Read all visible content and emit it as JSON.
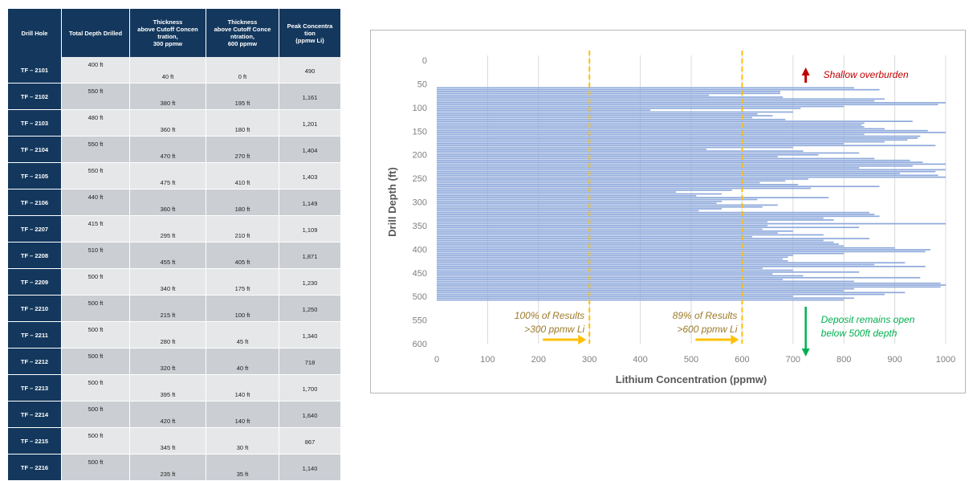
{
  "table": {
    "headers": {
      "hole": "Drill Hole",
      "depth": "Total Depth Drilled",
      "t300_lines": [
        "Thickness",
        "above Cutoff Concen",
        "tration,",
        "300 ppmw"
      ],
      "t600_lines": [
        "Thickness",
        "above Cutoff Conce",
        "ntration,",
        "600 ppmw"
      ],
      "peak_lines": [
        "Peak Concentra",
        "tion",
        "(ppmw Li)"
      ]
    },
    "rows": [
      {
        "hole": "TF – 2101",
        "depth": "400 ft",
        "t300": "40 ft",
        "t600": "0 ft",
        "peak": "490"
      },
      {
        "hole": "TF – 2102",
        "depth": "550 ft",
        "t300": "380 ft",
        "t600": "195 ft",
        "peak": "1,161"
      },
      {
        "hole": "TF – 2103",
        "depth": "480 ft",
        "t300": "360 ft",
        "t600": "180 ft",
        "peak": "1,201"
      },
      {
        "hole": "TF – 2104",
        "depth": "550 ft",
        "t300": "470 ft",
        "t600": "270 ft",
        "peak": "1,404"
      },
      {
        "hole": "TF – 2105",
        "depth": "550 ft",
        "t300": "475 ft",
        "t600": "410 ft",
        "peak": "1,403"
      },
      {
        "hole": "TF – 2106",
        "depth": "440 ft",
        "t300": "360 ft",
        "t600": "180 ft",
        "peak": "1,149"
      },
      {
        "hole": "TF – 2207",
        "depth": "415 ft",
        "t300": "295 ft",
        "t600": "210 ft",
        "peak": "1,109"
      },
      {
        "hole": "TF – 2208",
        "depth": "510 ft",
        "t300": "455 ft",
        "t600": "405 ft",
        "peak": "1,871"
      },
      {
        "hole": "TF – 2209",
        "depth": "500 ft",
        "t300": "340 ft",
        "t600": "175 ft",
        "peak": "1,230"
      },
      {
        "hole": "TF – 2210",
        "depth": "500 ft",
        "t300": "215 ft",
        "t600": "100 ft",
        "peak": "1,250"
      },
      {
        "hole": "TF – 2211",
        "depth": "500 ft",
        "t300": "280 ft",
        "t600": "45 ft",
        "peak": "1,340"
      },
      {
        "hole": "TF – 2212",
        "depth": "500 ft",
        "t300": "320 ft",
        "t600": "40 ft",
        "peak": "718"
      },
      {
        "hole": "TF – 2213",
        "depth": "500 ft",
        "t300": "395 ft",
        "t600": "140 ft",
        "peak": "1,700"
      },
      {
        "hole": "TF – 2214",
        "depth": "500 ft",
        "t300": "420 ft",
        "t600": "140 ft",
        "peak": "1,640"
      },
      {
        "hole": "TF – 2215",
        "depth": "500 ft",
        "t300": "345 ft",
        "t600": "30 ft",
        "peak": "867"
      },
      {
        "hole": "TF – 2216",
        "depth": "500 ft",
        "t300": "235 ft",
        "t600": "35 ft",
        "peak": "1,140"
      }
    ]
  },
  "chart_data": {
    "type": "bar",
    "orientation": "horizontal",
    "xlabel": "Lithium Concentration (ppmw)",
    "ylabel": "Drill Depth (ft)",
    "xlim": [
      0,
      1000
    ],
    "ylim": [
      0,
      600
    ],
    "y_inverted": true,
    "x_ticks": [
      "0",
      "100",
      "200",
      "300",
      "400",
      "500",
      "600",
      "700",
      "800",
      "900",
      "1000"
    ],
    "y_ticks": [
      "0",
      "50",
      "100",
      "150",
      "200",
      "250",
      "300",
      "350",
      "400",
      "450",
      "500",
      "550",
      "600"
    ],
    "grid": "vertical",
    "bar_color": "#8faadc",
    "series": [
      {
        "depth_min": 57,
        "depth_max": 510,
        "values": [
          820,
          870,
          675,
          675,
          535,
          680,
          880,
          860,
          1000,
          985,
          800,
          715,
          420,
          700,
          630,
          660,
          620,
          685,
          935,
          840,
          835,
          840,
          880,
          965,
          1000,
          840,
          950,
          945,
          925,
          880,
          800,
          980,
          700,
          530,
          720,
          830,
          750,
          670,
          860,
          930,
          955,
          1000,
          935,
          830,
          1000,
          980,
          910,
          985,
          1000,
          730,
          685,
          635,
          710,
          870,
          735,
          580,
          470,
          560,
          510,
          770,
          630,
          560,
          550,
          670,
          640,
          560,
          515,
          850,
          860,
          870,
          760,
          780,
          650,
          1000,
          650,
          830,
          640,
          700,
          670,
          760,
          620,
          850,
          760,
          780,
          790,
          800,
          900,
          970,
          960,
          800,
          700,
          690,
          680,
          690,
          920,
          860,
          960,
          640,
          700,
          830,
          660,
          720,
          950,
          680,
          820,
          990,
          1000,
          990,
          820,
          800,
          920,
          880,
          700,
          820,
          800
        ]
      }
    ],
    "reference_lines": [
      {
        "x": 300,
        "label_lines": [
          "100% of Results",
          ">300 ppmw Li"
        ]
      },
      {
        "x": 600,
        "label_lines": [
          "89% of Results",
          ">600 ppmw Li"
        ]
      }
    ],
    "annotations": {
      "top": "Shallow overburden",
      "bottom_lines": [
        "Deposit remains open",
        "below 500ft depth"
      ]
    },
    "colors": {
      "reference": "#ffc000",
      "reference_text": "#9c7a29",
      "top_annotation": "#c00000",
      "bottom_annotation": "#00b050",
      "grid": "#d9d9d9"
    }
  }
}
